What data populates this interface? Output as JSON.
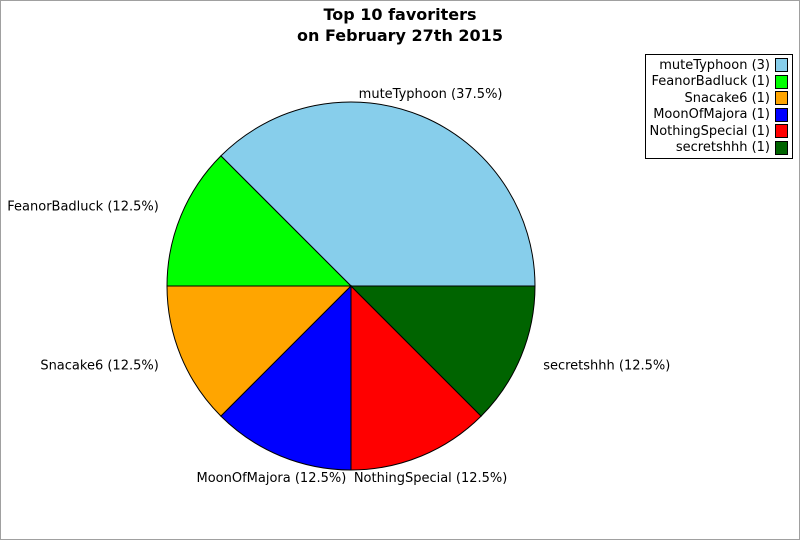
{
  "page": {
    "background": "#ffffff",
    "border_color": "#a0a0a0"
  },
  "chart_data": {
    "type": "pie",
    "title": "Top 10 favoriters",
    "subtitle": "on February 27th 2015",
    "start_angle_deg": 0,
    "direction": "counterclockwise",
    "outline_color": "#000000",
    "legend_position": "top-right",
    "slices": [
      {
        "name": "muteTyphoon",
        "count": 3,
        "percent": 37.5,
        "color": "#87CEEB",
        "label": "muteTyphoon (37.5%)",
        "legend_label": "muteTyphoon (3)"
      },
      {
        "name": "FeanorBadluck",
        "count": 1,
        "percent": 12.5,
        "color": "#00FF00",
        "label": "FeanorBadluck (12.5%)",
        "legend_label": "FeanorBadluck (1)"
      },
      {
        "name": "Snacake6",
        "count": 1,
        "percent": 12.5,
        "color": "#FFA500",
        "label": "Snacake6 (12.5%)",
        "legend_label": "Snacake6 (1)"
      },
      {
        "name": "MoonOfMajora",
        "count": 1,
        "percent": 12.5,
        "color": "#0000FF",
        "label": "MoonOfMajora (12.5%)",
        "legend_label": "MoonOfMajora (1)"
      },
      {
        "name": "NothingSpecial",
        "count": 1,
        "percent": 12.5,
        "color": "#FF0000",
        "label": "NothingSpecial (12.5%)",
        "legend_label": "NothingSpecial (1)"
      },
      {
        "name": "secretshhh",
        "count": 1,
        "percent": 12.5,
        "color": "#006400",
        "label": "secretshhh (12.5%)",
        "legend_label": "secretshhh (1)"
      }
    ]
  }
}
